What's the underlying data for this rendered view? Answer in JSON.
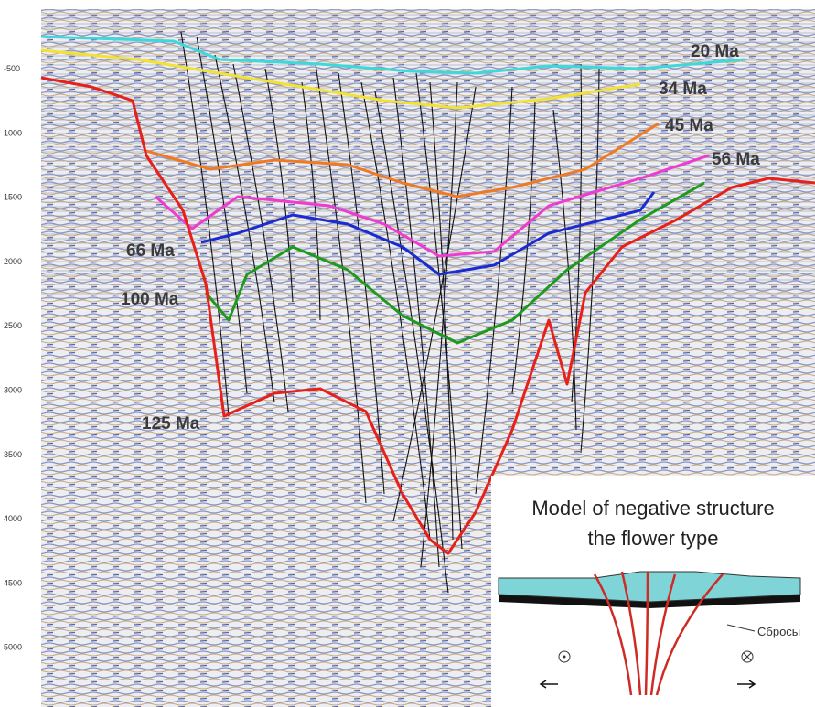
{
  "y_axis": {
    "labels": [
      "-500",
      "1000",
      "1500",
      "2000",
      "2500",
      "3000",
      "3500",
      "4000",
      "4500",
      "5000"
    ]
  },
  "horizons": [
    {
      "label": "20 Ma"
    },
    {
      "label": "34 Ma"
    },
    {
      "label": "45 Ma"
    },
    {
      "label": "56 Ma"
    },
    {
      "label": "66 Ma"
    },
    {
      "label": "100 Ma"
    },
    {
      "label": "125 Ma"
    }
  ],
  "inset": {
    "title_lines": [
      "Model of negative structure",
      "the flower type"
    ],
    "fault_label": "Сбросы"
  }
}
